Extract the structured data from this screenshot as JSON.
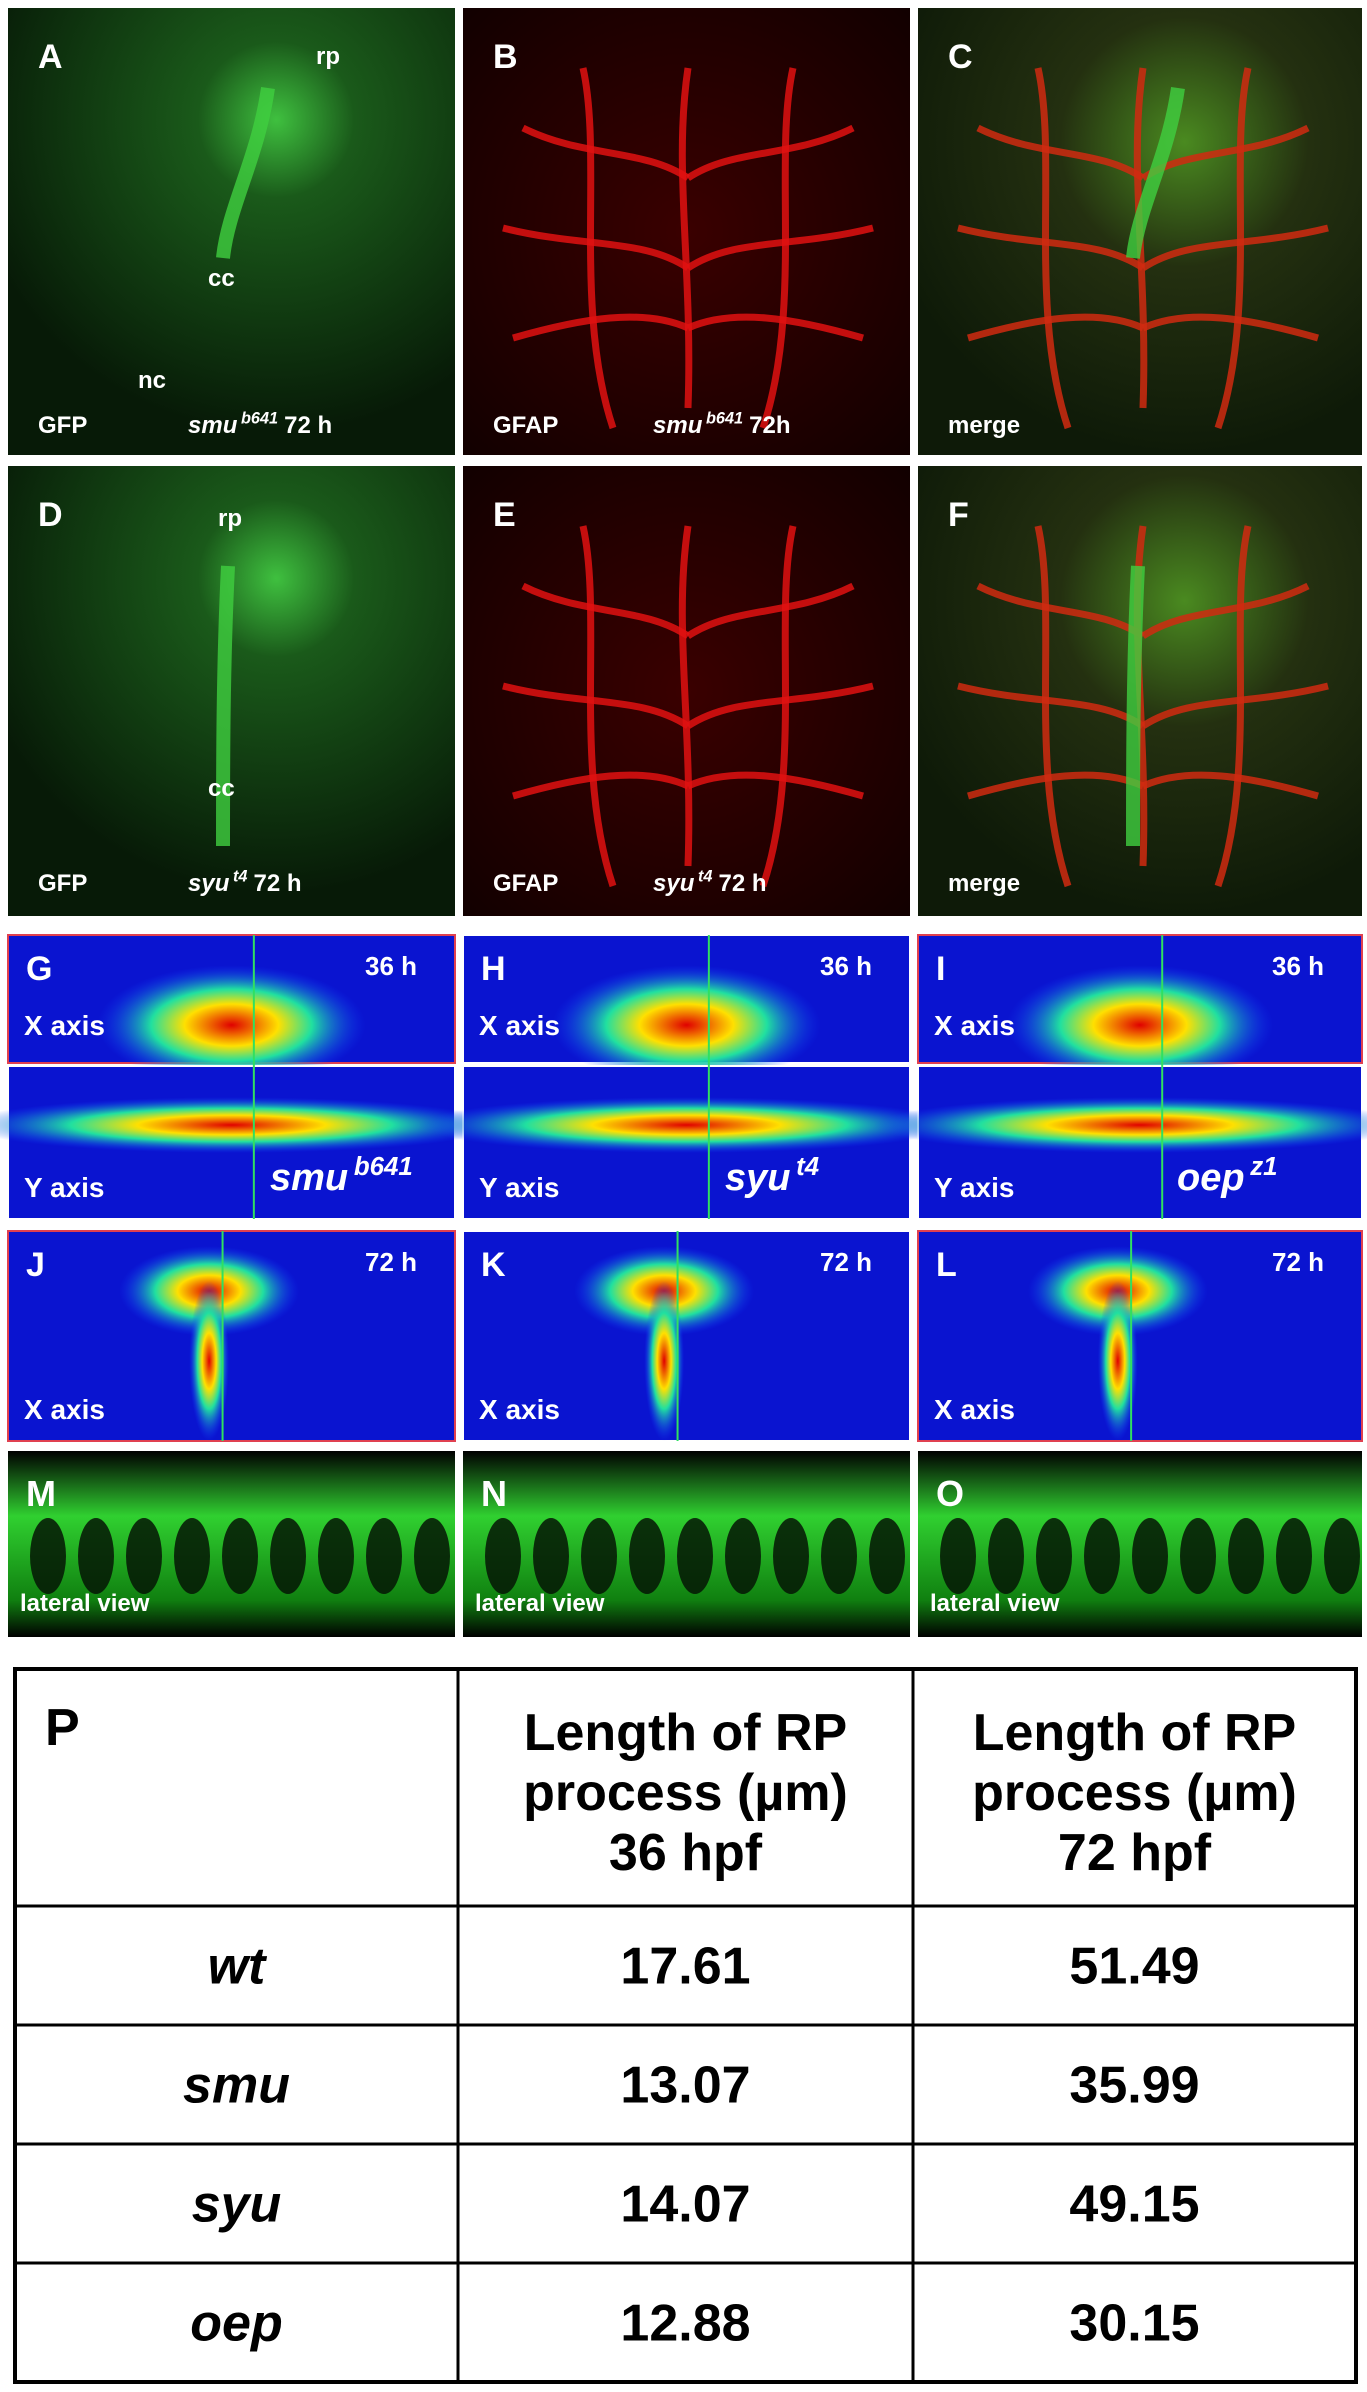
{
  "panels": [
    {
      "letter": "A",
      "rp": "rp",
      "cc": "cc",
      "nc": "nc",
      "stain": "GFP",
      "genotype": "smu",
      "allele": "b641",
      "time": "72 h"
    },
    {
      "letter": "B",
      "stain": "GFAP",
      "genotype": "smu",
      "allele": "b641",
      "time": "72h"
    },
    {
      "letter": "C",
      "stain": "merge"
    },
    {
      "letter": "D",
      "rp": "rp",
      "cc": "cc",
      "stain": "GFP",
      "genotype": "syu",
      "allele": "t4",
      "time": "72 h"
    },
    {
      "letter": "E",
      "stain": "GFAP",
      "genotype": "syu",
      "allele": "t4",
      "time": "72 h"
    },
    {
      "letter": "F",
      "stain": "merge"
    },
    {
      "letter": "G",
      "time": "36 h",
      "x_axis": "X axis",
      "y_axis": "Y axis",
      "genotype": "smu",
      "allele": "b641"
    },
    {
      "letter": "H",
      "time": "36 h",
      "x_axis": "X axis",
      "y_axis": "Y axis",
      "genotype": "syu",
      "allele": "t4"
    },
    {
      "letter": "I",
      "time": "36 h",
      "x_axis": "X axis",
      "y_axis": "Y axis",
      "genotype": "oep",
      "allele": "z1"
    },
    {
      "letter": "J",
      "time": "72 h",
      "x_axis": "X axis"
    },
    {
      "letter": "K",
      "time": "72 h",
      "x_axis": "X axis"
    },
    {
      "letter": "L",
      "time": "72 h",
      "x_axis": "X axis"
    },
    {
      "letter": "M",
      "view": "lateral view"
    },
    {
      "letter": "N",
      "view": "lateral view"
    },
    {
      "letter": "O",
      "view": "lateral view"
    }
  ],
  "table": {
    "corner": "P",
    "header": [
      [
        "Length of RP",
        "process (µm)",
        "36 hpf"
      ],
      [
        "Length of RP",
        "process (µm)",
        "72 hpf"
      ]
    ],
    "rows": [
      [
        "wt",
        17.61,
        51.49
      ],
      [
        "smu",
        13.07,
        35.99
      ],
      [
        "syu",
        14.07,
        49.15
      ],
      [
        "oep",
        12.88,
        30.15
      ]
    ]
  }
}
